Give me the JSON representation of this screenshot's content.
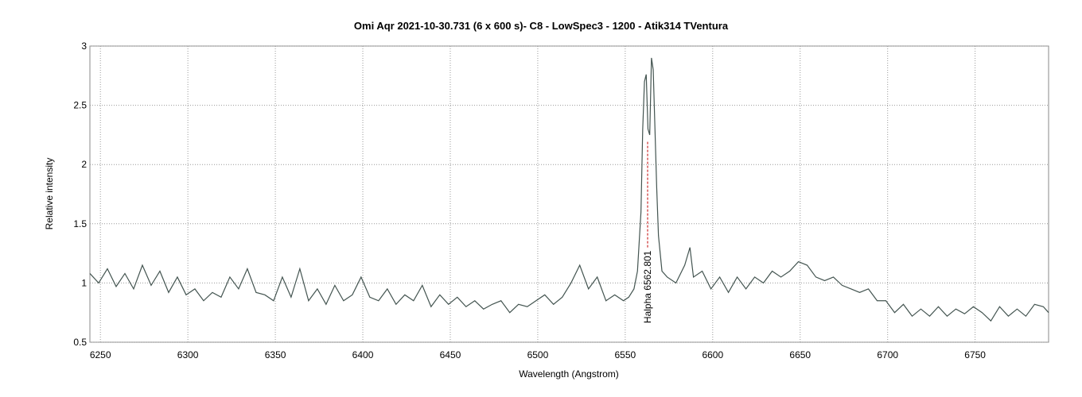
{
  "chart_data": {
    "type": "line",
    "title": "Omi Aqr  2021-10-30.731   (6 x 600 s)- C8 - LowSpec3 - 1200 - Atik314  TVentura",
    "x_label": "Wavelength (Angstrom)",
    "y_label": "Relative intensity",
    "xlim": [
      6244,
      6792
    ],
    "ylim": [
      0.5,
      3
    ],
    "xticks": [
      6250,
      6300,
      6350,
      6400,
      6450,
      6500,
      6550,
      6600,
      6650,
      6700,
      6750
    ],
    "yticks": [
      0.5,
      1,
      1.5,
      2,
      2.5,
      3
    ],
    "grid": true,
    "annotation": {
      "text": "Halpha 6562.801",
      "x": 6562.801,
      "y_start": 1.3,
      "y_end": 2.2,
      "color": "#c00000"
    },
    "series": [
      {
        "name": "spectrum",
        "color": "#435450",
        "x": [
          6244,
          6249,
          6254,
          6259,
          6264,
          6269,
          6274,
          6279,
          6284,
          6289,
          6294,
          6299,
          6304,
          6309,
          6314,
          6319,
          6324,
          6329,
          6334,
          6339,
          6344,
          6349,
          6354,
          6359,
          6364,
          6369,
          6374,
          6379,
          6384,
          6389,
          6394,
          6399,
          6404,
          6409,
          6414,
          6419,
          6424,
          6429,
          6434,
          6439,
          6444,
          6449,
          6454,
          6459,
          6464,
          6469,
          6474,
          6479,
          6484,
          6489,
          6494,
          6499,
          6504,
          6509,
          6514,
          6519,
          6524,
          6529,
          6534,
          6539,
          6544,
          6549,
          6552,
          6555,
          6557,
          6559,
          6560,
          6561,
          6562,
          6563,
          6564,
          6565,
          6566,
          6567,
          6568,
          6569,
          6571,
          6574,
          6579,
          6584,
          6587,
          6589,
          6594,
          6599,
          6604,
          6609,
          6614,
          6619,
          6624,
          6629,
          6634,
          6639,
          6644,
          6649,
          6654,
          6659,
          6664,
          6669,
          6674,
          6679,
          6684,
          6689,
          6694,
          6699,
          6704,
          6709,
          6714,
          6719,
          6724,
          6729,
          6734,
          6739,
          6744,
          6749,
          6754,
          6759,
          6764,
          6769,
          6774,
          6779,
          6784,
          6789,
          6792
        ],
        "values": [
          1.08,
          1.0,
          1.12,
          0.97,
          1.08,
          0.95,
          1.15,
          0.98,
          1.1,
          0.92,
          1.05,
          0.9,
          0.95,
          0.85,
          0.92,
          0.88,
          1.05,
          0.95,
          1.12,
          0.92,
          0.9,
          0.85,
          1.05,
          0.88,
          1.12,
          0.85,
          0.95,
          0.82,
          0.98,
          0.85,
          0.9,
          1.05,
          0.88,
          0.85,
          0.95,
          0.82,
          0.9,
          0.85,
          0.98,
          0.8,
          0.9,
          0.82,
          0.88,
          0.8,
          0.85,
          0.78,
          0.82,
          0.85,
          0.75,
          0.82,
          0.8,
          0.85,
          0.9,
          0.82,
          0.88,
          1.0,
          1.15,
          0.95,
          1.05,
          0.85,
          0.9,
          0.85,
          0.88,
          0.95,
          1.1,
          1.6,
          2.3,
          2.7,
          2.76,
          2.3,
          2.25,
          2.9,
          2.8,
          2.3,
          1.8,
          1.4,
          1.1,
          1.05,
          1.0,
          1.15,
          1.3,
          1.05,
          1.1,
          0.95,
          1.05,
          0.92,
          1.05,
          0.95,
          1.05,
          1.0,
          1.1,
          1.05,
          1.1,
          1.18,
          1.15,
          1.05,
          1.02,
          1.05,
          0.98,
          0.95,
          0.92,
          0.95,
          0.85,
          0.85,
          0.75,
          0.82,
          0.72,
          0.78,
          0.72,
          0.8,
          0.72,
          0.78,
          0.74,
          0.8,
          0.75,
          0.68,
          0.8,
          0.72,
          0.78,
          0.72,
          0.82,
          0.8,
          0.75
        ]
      }
    ]
  }
}
